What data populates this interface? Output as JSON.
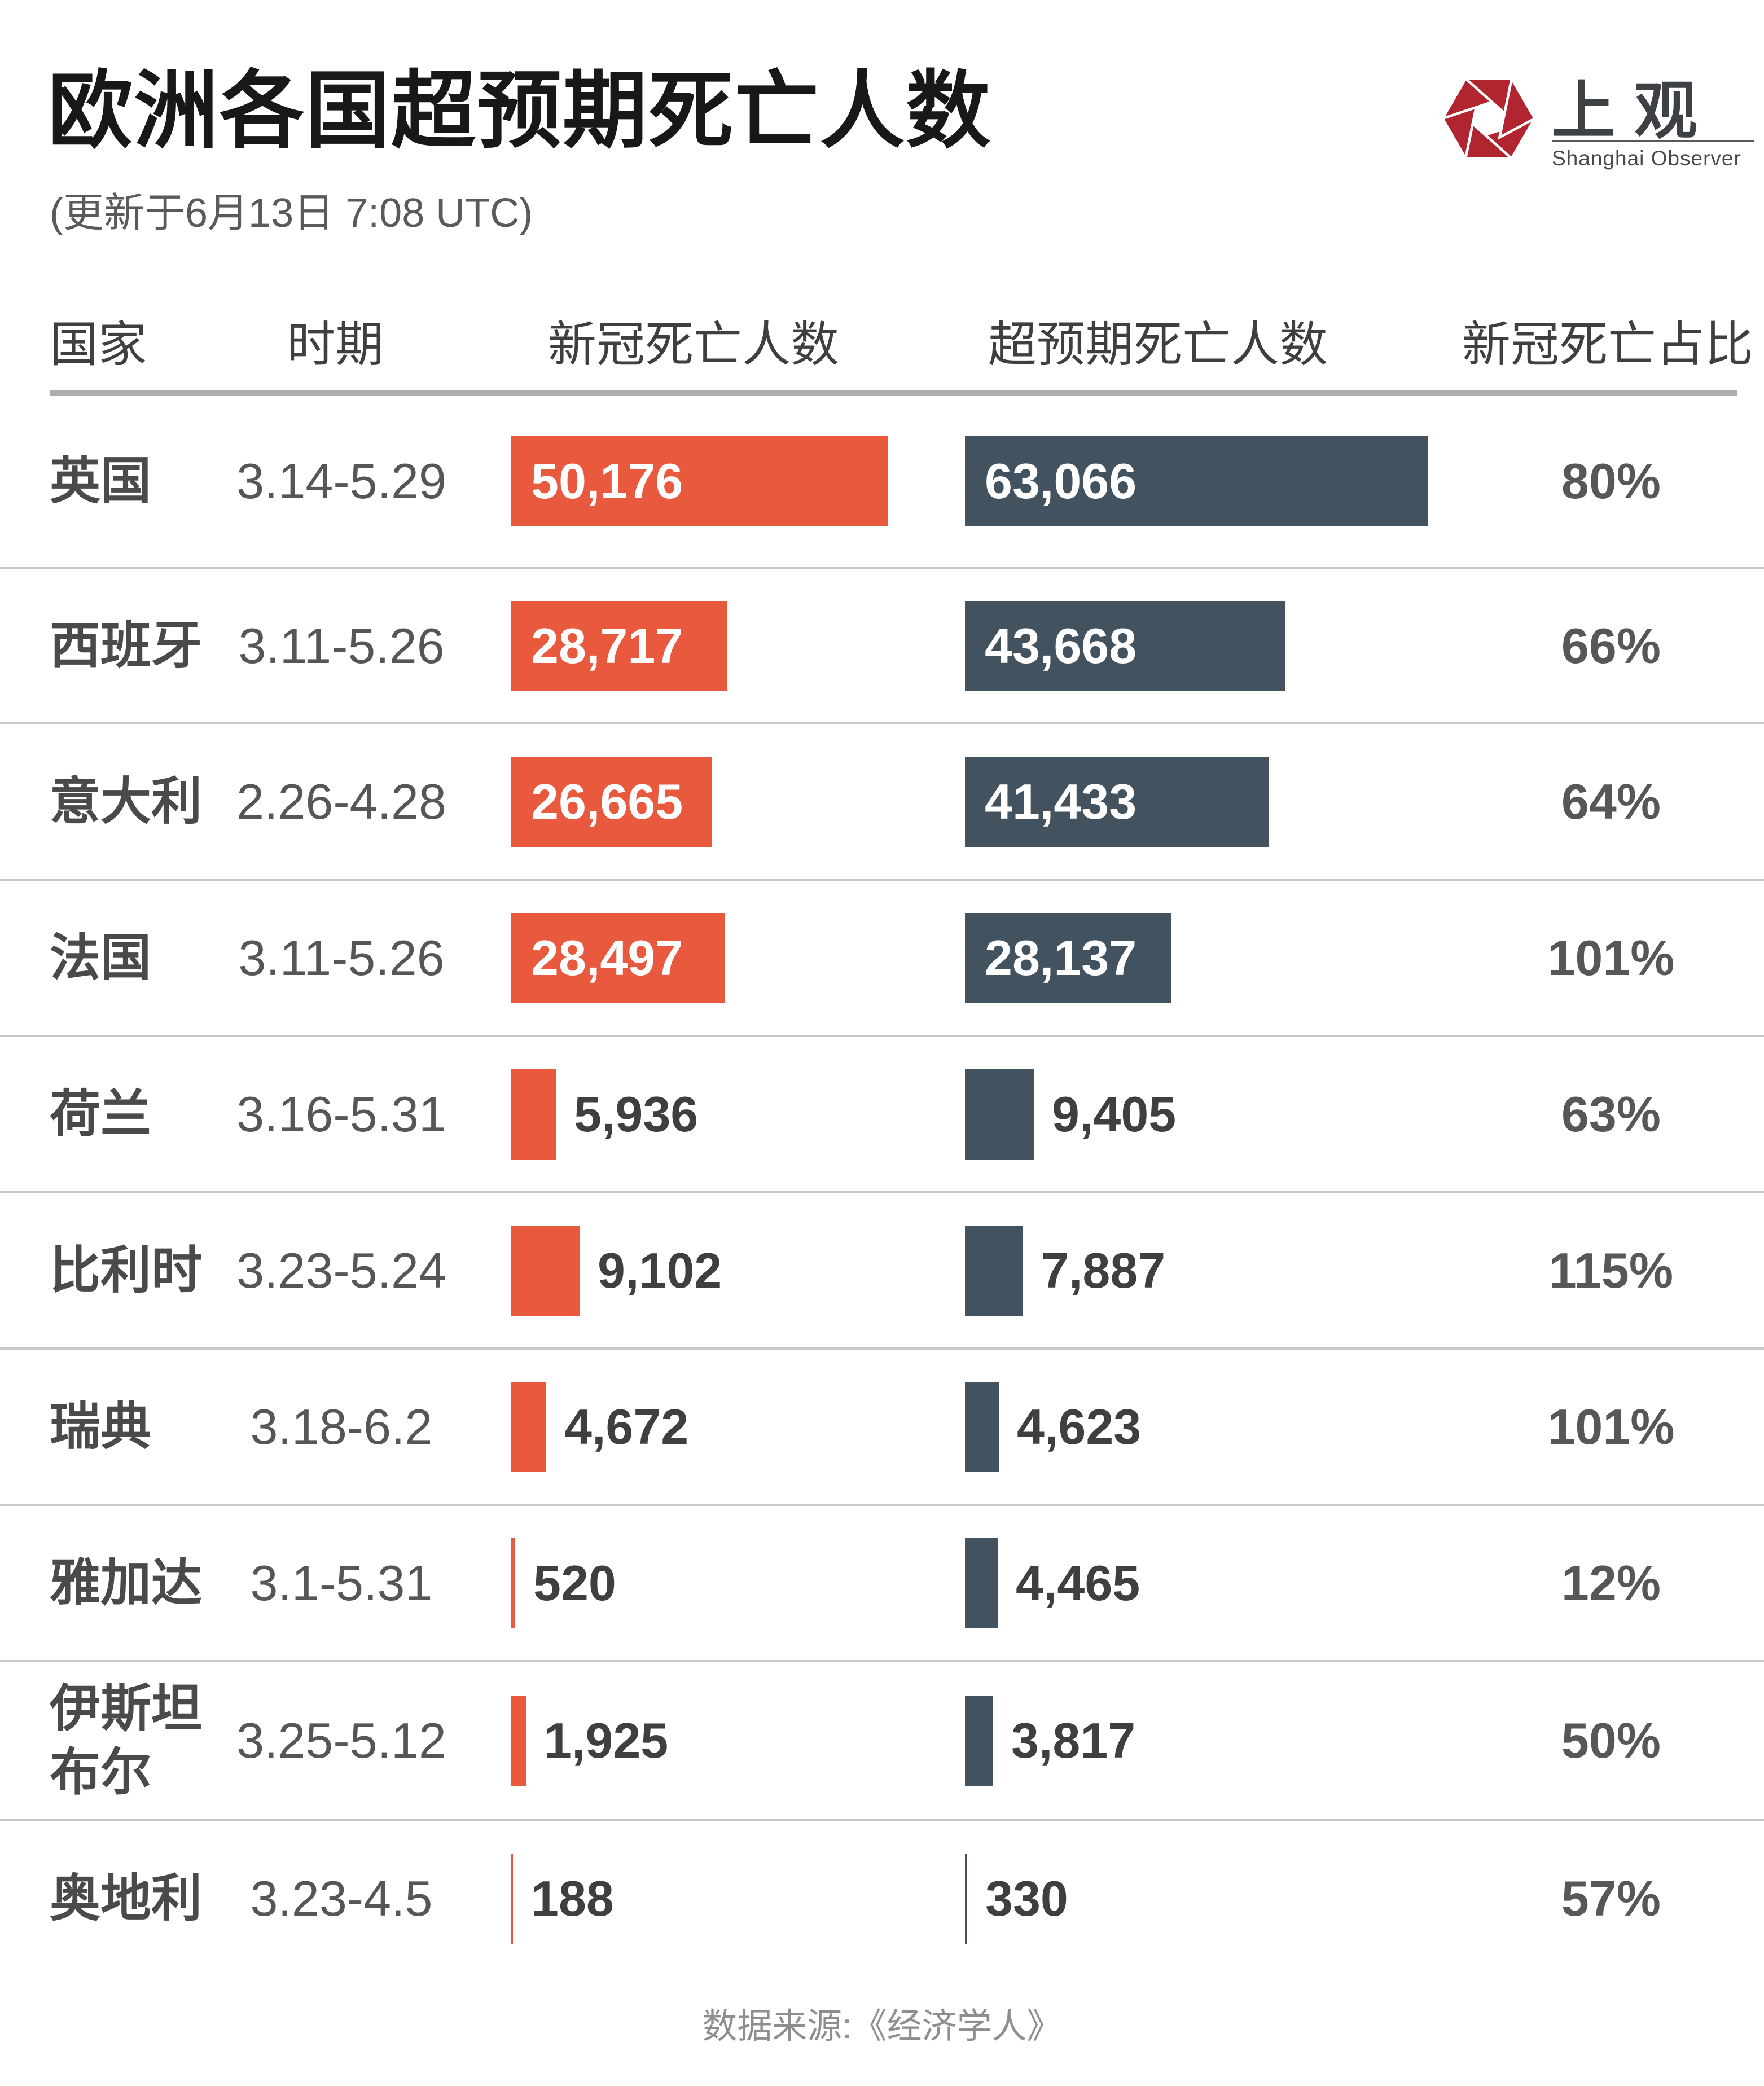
{
  "page": {
    "title": "欧洲各国超预期死亡人数",
    "subtitle": "(更新于6月13日 7:08 UTC)",
    "footer_source": "数据来源:《经济学人》"
  },
  "logo": {
    "cn_name": "上观",
    "en_name": "Shanghai Observer",
    "brand_red": "#b02530"
  },
  "table": {
    "columns": [
      "国家",
      "时期",
      "新冠死亡人数",
      "超预期死亡人数",
      "新冠死亡占比"
    ]
  },
  "chart_data": {
    "type": "bar",
    "orientation": "horizontal",
    "title": "欧洲各国超预期死亡人数",
    "categories": [
      "英国",
      "西班牙",
      "意大利",
      "法国",
      "荷兰",
      "比利时",
      "瑞典",
      "雅加达",
      "伊斯坦布尔",
      "奥地利"
    ],
    "periods": [
      "3.14-5.29",
      "3.11-5.26",
      "2.26-4.28",
      "3.11-5.26",
      "3.16-5.31",
      "3.23-5.24",
      "3.18-6.2",
      "3.1-5.31",
      "3.25-5.12",
      "3.23-4.5"
    ],
    "series": [
      {
        "name": "新冠死亡人数",
        "color": "#e8593e",
        "values": [
          50176,
          28717,
          26665,
          28497,
          5936,
          9102,
          4672,
          520,
          1925,
          188
        ]
      },
      {
        "name": "超预期死亡人数",
        "color": "#42525f",
        "values": [
          63066,
          43668,
          41433,
          28137,
          9405,
          7887,
          4623,
          4465,
          3817,
          330
        ]
      }
    ],
    "ratios": [
      "80%",
      "66%",
      "64%",
      "101%",
      "63%",
      "115%",
      "101%",
      "12%",
      "50%",
      "57%"
    ],
    "xlim": [
      0,
      63066
    ],
    "grid": false,
    "legend": "column-headers",
    "colors": {
      "covid_bar": "#e8593e",
      "excess_bar": "#42525f",
      "separator": "#c9c9c9",
      "header_rule": "#aeaeae"
    }
  }
}
